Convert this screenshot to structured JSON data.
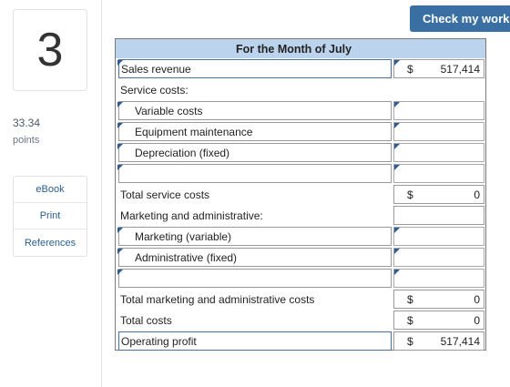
{
  "question": {
    "number": "3",
    "points_value": "33.34",
    "points_label": "points"
  },
  "resources": [
    "eBook",
    "Print",
    "References"
  ],
  "check_button": "Check my work",
  "sheet": {
    "title": "For the Month of July",
    "rows": [
      {
        "label": "Sales revenue",
        "dollar": "$",
        "value": "517,414"
      },
      {
        "label": "Service costs:",
        "dollar": "",
        "value": ""
      },
      {
        "label": "Variable costs",
        "dollar": "",
        "value": ""
      },
      {
        "label": "Equipment maintenance",
        "dollar": "",
        "value": ""
      },
      {
        "label": "Depreciation (fixed)",
        "dollar": "",
        "value": ""
      },
      {
        "label": "",
        "dollar": "",
        "value": ""
      },
      {
        "label": "Total service costs",
        "dollar": "$",
        "value": "0"
      },
      {
        "label": "Marketing and administrative:",
        "dollar": "",
        "value": ""
      },
      {
        "label": "Marketing (variable)",
        "dollar": "",
        "value": ""
      },
      {
        "label": "Administrative (fixed)",
        "dollar": "",
        "value": ""
      },
      {
        "label": "",
        "dollar": "",
        "value": ""
      },
      {
        "label": "Total marketing and administrative costs",
        "dollar": "$",
        "value": "0"
      },
      {
        "label": "Total costs",
        "dollar": "$",
        "value": "0"
      },
      {
        "label": "Operating profit",
        "dollar": "$",
        "value": "517,414"
      }
    ]
  }
}
